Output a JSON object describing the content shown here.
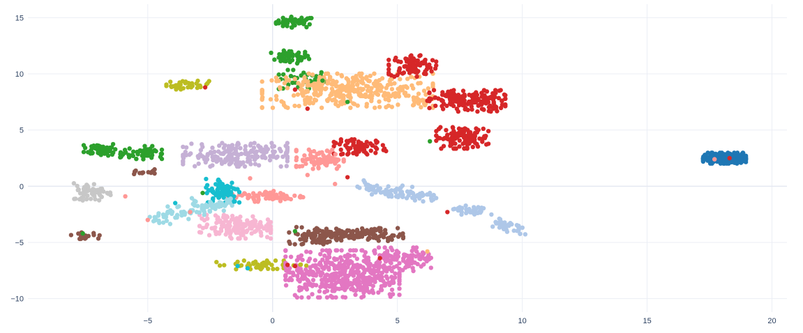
{
  "chart_data": {
    "type": "scatter",
    "title": "",
    "xlabel": "",
    "ylabel": "",
    "xlim": [
      -9.8,
      20.6
    ],
    "ylim": [
      -11.2,
      16.2
    ],
    "grid": true,
    "legend": "none",
    "x_ticks": [
      -5,
      0,
      5,
      10,
      15,
      20
    ],
    "x_tick_labels": [
      "−5",
      "0",
      "5",
      "10",
      "15",
      "20"
    ],
    "y_ticks": [
      -10,
      -5,
      0,
      5,
      10,
      15
    ],
    "y_tick_labels": [
      "−10",
      "−5",
      "0",
      "5",
      "10",
      "15"
    ],
    "clusters": [
      {
        "color": "#2ca02c",
        "cx": 0.9,
        "cy": 14.6,
        "sx": 0.4,
        "sy": 0.25,
        "n": 45
      },
      {
        "color": "#2ca02c",
        "cx": 0.7,
        "cy": 11.5,
        "sx": 0.4,
        "sy": 0.3,
        "n": 45
      },
      {
        "color": "#2ca02c",
        "cx": 1.2,
        "cy": 9.4,
        "sx": 0.5,
        "sy": 0.5,
        "n": 40
      },
      {
        "color": "#2ca02c",
        "cx": -6.9,
        "cy": 3.3,
        "sx": 0.35,
        "sy": 0.3,
        "n": 50
      },
      {
        "color": "#2ca02c",
        "cx": -5.1,
        "cy": 3.0,
        "sx": 0.35,
        "sy": 0.3,
        "n": 40
      },
      {
        "color": "#2ca02c",
        "cx": -6.0,
        "cy": 2.8,
        "sx": 0.5,
        "sy": 0.25,
        "n": 14
      },
      {
        "color": "#bcbd22",
        "cx": -3.4,
        "cy": 9.0,
        "sx": 0.45,
        "sy": 0.2,
        "n": 35
      },
      {
        "color": "#bcbd22",
        "cx": -0.5,
        "cy": -7.0,
        "sx": 1.0,
        "sy": 0.2,
        "n": 45
      },
      {
        "color": "#ffbb78",
        "cx": 3.0,
        "cy": 8.5,
        "sx": 1.8,
        "sy": 0.8,
        "n": 340
      },
      {
        "color": "#ffbb78",
        "cx": 6.0,
        "cy": 7.6,
        "sx": 0.3,
        "sy": 0.3,
        "n": 15
      },
      {
        "color": "#d62728",
        "cx": 5.6,
        "cy": 10.7,
        "sx": 0.5,
        "sy": 0.5,
        "n": 90
      },
      {
        "color": "#d62728",
        "cx": 7.8,
        "cy": 7.6,
        "sx": 0.8,
        "sy": 0.5,
        "n": 170
      },
      {
        "color": "#d62728",
        "cx": 7.6,
        "cy": 4.3,
        "sx": 0.55,
        "sy": 0.5,
        "n": 120
      },
      {
        "color": "#d62728",
        "cx": 3.5,
        "cy": 3.5,
        "sx": 0.55,
        "sy": 0.35,
        "n": 70
      },
      {
        "color": "#1f77b4",
        "cx": 18.1,
        "cy": 2.5,
        "sx": 0.45,
        "sy": 0.25,
        "n": 260
      },
      {
        "color": "#c5b0d5",
        "cx": -1.5,
        "cy": 2.8,
        "sx": 1.1,
        "sy": 0.55,
        "n": 190
      },
      {
        "color": "#ff9896",
        "cx": 1.9,
        "cy": 2.4,
        "sx": 0.5,
        "sy": 0.45,
        "n": 75
      },
      {
        "color": "#ff9896",
        "cx": -0.3,
        "cy": -0.9,
        "sx": 0.8,
        "sy": 0.25,
        "n": 65
      },
      {
        "color": "#17becf",
        "cx": -2.0,
        "cy": -0.4,
        "sx": 0.35,
        "sy": 0.55,
        "n": 85
      },
      {
        "color": "#c7c7c7",
        "cx": -7.2,
        "cy": -0.5,
        "sx": 0.4,
        "sy": 0.4,
        "n": 60
      },
      {
        "color": "#8c564b",
        "cx": -5.2,
        "cy": 1.3,
        "sx": 0.25,
        "sy": 0.2,
        "n": 14
      },
      {
        "color": "#8c564b",
        "cx": -7.5,
        "cy": -4.4,
        "sx": 0.3,
        "sy": 0.15,
        "n": 22
      },
      {
        "color": "#8c564b",
        "cx": 1.8,
        "cy": -4.4,
        "sx": 0.6,
        "sy": 0.4,
        "n": 95
      },
      {
        "color": "#8c564b",
        "cx": 3.9,
        "cy": -4.3,
        "sx": 0.7,
        "sy": 0.3,
        "n": 90
      },
      {
        "color": "#f7b6d2",
        "cx": -1.5,
        "cy": -3.6,
        "sx": 0.75,
        "sy": 0.55,
        "n": 150
      },
      {
        "color": "#e377c2",
        "cx": 2.8,
        "cy": -7.8,
        "sx": 1.2,
        "sy": 1.1,
        "n": 450
      },
      {
        "color": "#e377c2",
        "cx": 5.3,
        "cy": -6.5,
        "sx": 0.55,
        "sy": 0.55,
        "n": 90
      }
    ],
    "trails": [
      {
        "color": "#9edae5",
        "x0": -4.9,
        "y0": -2.9,
        "x1": -1.6,
        "y1": -1.3,
        "w": 0.3,
        "n": 90
      },
      {
        "color": "#aec7e8",
        "x0": 3.6,
        "y0": 0.0,
        "x1": 6.5,
        "y1": -1.0,
        "w": 0.25,
        "n": 80
      },
      {
        "color": "#aec7e8",
        "x0": 7.3,
        "y0": -2.1,
        "x1": 8.5,
        "y1": -2.1,
        "w": 0.2,
        "n": 35
      },
      {
        "color": "#aec7e8",
        "x0": 9.0,
        "y0": -3.3,
        "x1": 10.0,
        "y1": -4.1,
        "w": 0.2,
        "n": 40
      }
    ],
    "points": [
      {
        "x": -2.7,
        "y": 8.8,
        "color": "#d62728"
      },
      {
        "x": 0.9,
        "y": 8.6,
        "color": "#d62728"
      },
      {
        "x": 1.4,
        "y": 6.9,
        "color": "#d62728"
      },
      {
        "x": 6.2,
        "y": 7.6,
        "color": "#d62728"
      },
      {
        "x": 6.3,
        "y": 4.0,
        "color": "#2ca02c"
      },
      {
        "x": 3.0,
        "y": 7.5,
        "color": "#2ca02c"
      },
      {
        "x": 2.0,
        "y": 9.4,
        "color": "#2ca02c"
      },
      {
        "x": 3.0,
        "y": 0.8,
        "color": "#d62728"
      },
      {
        "x": 2.5,
        "y": 0.2,
        "color": "#ff9896"
      },
      {
        "x": 1.4,
        "y": 1.0,
        "color": "#ff9896"
      },
      {
        "x": -0.9,
        "y": 0.7,
        "color": "#ff9896"
      },
      {
        "x": -5.9,
        "y": -0.9,
        "color": "#ff9896"
      },
      {
        "x": -3.3,
        "y": -2.3,
        "color": "#ff9896"
      },
      {
        "x": -5.0,
        "y": -3.0,
        "color": "#ff9896"
      },
      {
        "x": 0.6,
        "y": -7.0,
        "color": "#d62728"
      },
      {
        "x": -1.0,
        "y": -7.3,
        "color": "#17becf"
      },
      {
        "x": -1.4,
        "y": -7.1,
        "color": "#17becf"
      },
      {
        "x": 7.0,
        "y": -2.3,
        "color": "#d62728"
      },
      {
        "x": 4.3,
        "y": -6.4,
        "color": "#d62728"
      },
      {
        "x": 0.9,
        "y": -7.1,
        "color": "#d62728"
      },
      {
        "x": 0.9,
        "y": -4.0,
        "color": "#2ca02c"
      },
      {
        "x": -2.8,
        "y": -0.6,
        "color": "#2ca02c"
      },
      {
        "x": 17.7,
        "y": 2.4,
        "color": "#ff9896"
      },
      {
        "x": 18.3,
        "y": 2.5,
        "color": "#d62728"
      },
      {
        "x": -7.6,
        "y": -4.2,
        "color": "#2ca02c"
      },
      {
        "x": -3.9,
        "y": -1.5,
        "color": "#17becf"
      },
      {
        "x": 6.2,
        "y": -5.8,
        "color": "#ffbb78"
      }
    ]
  }
}
